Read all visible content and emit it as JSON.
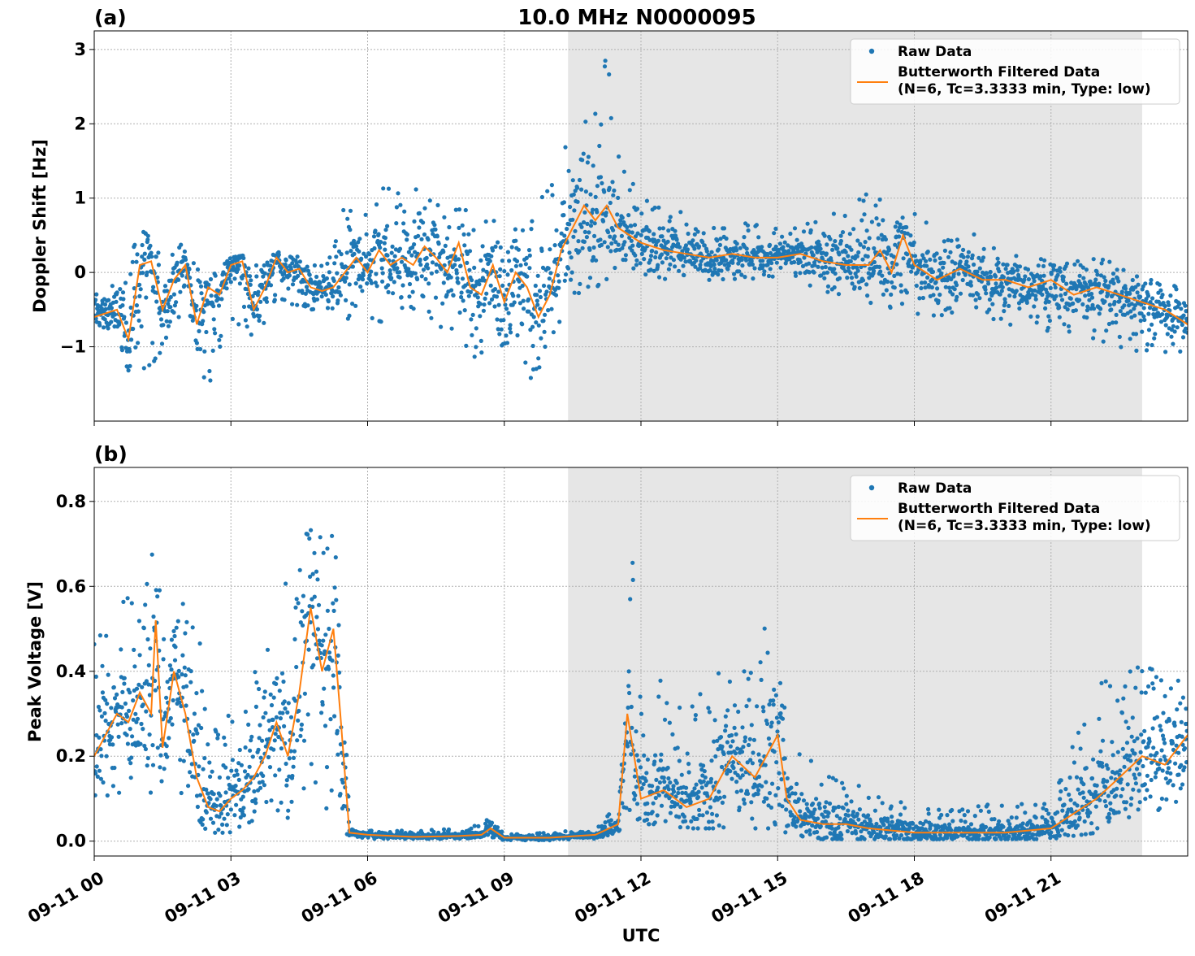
{
  "figure": {
    "title": "10.0 MHz N0000095",
    "xlabel": "UTC",
    "shaded_region_hours": [
      10.4,
      23.0
    ]
  },
  "colors": {
    "raw": "#1f77b4",
    "filtered": "#ff7f0e",
    "shade": "#e6e6e6",
    "grid": "#b0b0b0"
  },
  "legend": {
    "raw_label": "Raw Data",
    "filtered_label_line1": "Butterworth Filtered Data",
    "filtered_label_line2": "(N=6, Tc=3.3333 min, Type: low)"
  },
  "x_ticks": [
    {
      "hour": 0,
      "label": "09-11 00"
    },
    {
      "hour": 3,
      "label": "09-11 03"
    },
    {
      "hour": 6,
      "label": "09-11 06"
    },
    {
      "hour": 9,
      "label": "09-11 09"
    },
    {
      "hour": 12,
      "label": "09-11 12"
    },
    {
      "hour": 15,
      "label": "09-11 15"
    },
    {
      "hour": 18,
      "label": "09-11 18"
    },
    {
      "hour": 21,
      "label": "09-11 21"
    }
  ],
  "chart_data": [
    {
      "type": "scatter",
      "panel_label": "(a)",
      "ylabel": "Doppler Shift [Hz]",
      "xlim": [
        0,
        24
      ],
      "ylim": [
        -2.0,
        3.25
      ],
      "yticks": [
        {
          "value": -1,
          "label": "−1"
        },
        {
          "value": 0,
          "label": "0"
        },
        {
          "value": 1,
          "label": "1"
        },
        {
          "value": 2,
          "label": "2"
        },
        {
          "value": 3,
          "label": "3"
        }
      ],
      "grid": true,
      "legend_position": "top-right",
      "series": [
        {
          "name": "Butterworth Filtered Data",
          "kind": "line",
          "x": [
            0,
            0.25,
            0.5,
            0.75,
            1.0,
            1.25,
            1.5,
            1.75,
            2.0,
            2.25,
            2.5,
            2.75,
            3.0,
            3.25,
            3.5,
            3.75,
            4.0,
            4.25,
            4.5,
            4.75,
            5.0,
            5.25,
            5.5,
            5.75,
            6.0,
            6.25,
            6.5,
            6.75,
            7.0,
            7.25,
            7.5,
            7.75,
            8.0,
            8.25,
            8.5,
            8.75,
            9.0,
            9.25,
            9.5,
            9.75,
            10.0,
            10.25,
            10.5,
            10.75,
            11.0,
            11.25,
            11.5,
            11.75,
            12.0,
            12.5,
            13.0,
            13.5,
            14.0,
            14.5,
            15.0,
            15.5,
            16.0,
            16.5,
            17.0,
            17.25,
            17.5,
            17.75,
            18.0,
            18.5,
            19.0,
            19.5,
            20.0,
            20.5,
            21.0,
            21.5,
            22.0,
            22.5,
            23.0,
            23.5,
            24.0
          ],
          "y": [
            -0.6,
            -0.55,
            -0.5,
            -0.9,
            0.1,
            0.15,
            -0.5,
            -0.1,
            0.1,
            -0.7,
            -0.2,
            -0.3,
            0.1,
            0.15,
            -0.5,
            -0.2,
            0.2,
            0.0,
            0.05,
            -0.2,
            -0.25,
            -0.2,
            0.0,
            0.2,
            0.0,
            0.3,
            0.1,
            0.2,
            0.1,
            0.35,
            0.2,
            0.0,
            0.4,
            -0.2,
            -0.3,
            0.1,
            -0.4,
            0.0,
            -0.2,
            -0.6,
            -0.3,
            0.3,
            0.6,
            0.9,
            0.7,
            0.9,
            0.6,
            0.5,
            0.4,
            0.3,
            0.25,
            0.2,
            0.25,
            0.2,
            0.2,
            0.25,
            0.15,
            0.1,
            0.1,
            0.3,
            0.0,
            0.5,
            0.1,
            -0.1,
            0.05,
            -0.1,
            -0.1,
            -0.2,
            -0.1,
            -0.3,
            -0.2,
            -0.3,
            -0.4,
            -0.5,
            -0.7
          ]
        },
        {
          "name": "Raw Data",
          "kind": "points",
          "envelope_x": [
            0,
            0.5,
            1.0,
            1.5,
            2.0,
            2.5,
            3.0,
            3.5,
            4.0,
            4.5,
            5.0,
            5.5,
            6.0,
            6.5,
            7.0,
            7.5,
            8.0,
            8.5,
            9.0,
            9.5,
            10.0,
            10.5,
            11.0,
            11.25,
            11.5,
            12.0,
            13.0,
            14.0,
            15.0,
            16.0,
            17.0,
            18.0,
            19.0,
            20.0,
            21.0,
            22.0,
            23.0,
            24.0
          ],
          "envelope_low": [
            -1.0,
            -1.0,
            -1.7,
            -1.2,
            -0.6,
            -1.6,
            -0.6,
            -1.0,
            -0.4,
            -0.5,
            -0.5,
            -0.6,
            -0.8,
            -0.7,
            -0.7,
            -0.8,
            -0.9,
            -1.3,
            -1.4,
            -1.6,
            -1.0,
            -0.3,
            -0.3,
            -0.4,
            -0.1,
            -0.1,
            -0.1,
            -0.1,
            -0.1,
            -0.3,
            -0.4,
            -0.6,
            -0.6,
            -0.7,
            -0.8,
            -0.9,
            -1.1,
            -1.1
          ],
          "envelope_high": [
            -0.2,
            -0.1,
            0.6,
            0.3,
            0.45,
            -0.1,
            0.2,
            0.25,
            0.35,
            0.2,
            0.1,
            0.9,
            1.0,
            1.2,
            1.1,
            1.3,
            1.0,
            0.8,
            0.9,
            0.7,
            1.3,
            2.3,
            2.5,
            3.0,
            1.6,
            1.0,
            0.8,
            0.7,
            0.6,
            0.7,
            1.1,
            0.8,
            0.6,
            0.4,
            0.3,
            0.2,
            0.0,
            -0.1
          ]
        }
      ]
    },
    {
      "type": "scatter",
      "panel_label": "(b)",
      "ylabel": "Peak Voltage [V]",
      "xlim": [
        0,
        24
      ],
      "ylim": [
        -0.035,
        0.88
      ],
      "yticks": [
        {
          "value": 0.0,
          "label": "0.0"
        },
        {
          "value": 0.2,
          "label": "0.2"
        },
        {
          "value": 0.4,
          "label": "0.4"
        },
        {
          "value": 0.6,
          "label": "0.6"
        },
        {
          "value": 0.8,
          "label": "0.8"
        }
      ],
      "grid": true,
      "legend_position": "top-right",
      "series": [
        {
          "name": "Butterworth Filtered Data",
          "kind": "line",
          "x": [
            0,
            0.25,
            0.5,
            0.75,
            1.0,
            1.25,
            1.35,
            1.5,
            1.75,
            2.0,
            2.25,
            2.5,
            2.75,
            3.0,
            3.25,
            3.5,
            3.75,
            4.0,
            4.25,
            4.5,
            4.75,
            5.0,
            5.25,
            5.4,
            5.6,
            6.0,
            7.0,
            8.0,
            8.5,
            8.7,
            9.0,
            10.0,
            11.0,
            11.5,
            11.7,
            11.85,
            12.0,
            12.5,
            13.0,
            13.5,
            14.0,
            14.5,
            15.0,
            15.2,
            15.5,
            16.0,
            16.5,
            17.0,
            18.0,
            19.0,
            20.0,
            21.0,
            22.0,
            22.5,
            23.0,
            23.5,
            24.0
          ],
          "y": [
            0.2,
            0.25,
            0.3,
            0.28,
            0.35,
            0.3,
            0.52,
            0.22,
            0.4,
            0.3,
            0.15,
            0.08,
            0.07,
            0.1,
            0.12,
            0.15,
            0.2,
            0.28,
            0.2,
            0.35,
            0.55,
            0.4,
            0.5,
            0.3,
            0.02,
            0.015,
            0.01,
            0.012,
            0.015,
            0.03,
            0.008,
            0.008,
            0.015,
            0.04,
            0.3,
            0.2,
            0.1,
            0.12,
            0.08,
            0.1,
            0.2,
            0.15,
            0.25,
            0.1,
            0.05,
            0.04,
            0.04,
            0.03,
            0.02,
            0.02,
            0.02,
            0.03,
            0.1,
            0.15,
            0.2,
            0.18,
            0.25
          ]
        },
        {
          "name": "Raw Data",
          "kind": "points",
          "envelope_x": [
            0,
            0.5,
            1.0,
            1.35,
            1.6,
            2.0,
            2.3,
            2.5,
            3.0,
            3.5,
            4.0,
            4.5,
            5.0,
            5.3,
            5.45,
            5.6,
            6.0,
            7.0,
            8.0,
            8.5,
            8.7,
            9.0,
            10.0,
            11.0,
            11.5,
            11.7,
            11.85,
            12.0,
            12.5,
            13.0,
            13.5,
            14.0,
            14.5,
            15.0,
            15.2,
            15.5,
            16.0,
            16.5,
            17.0,
            18.0,
            19.0,
            20.0,
            21.0,
            22.0,
            22.5,
            23.0,
            23.5,
            24.0
          ],
          "envelope_low": [
            0.08,
            0.1,
            0.12,
            0.1,
            0.1,
            0.1,
            0.05,
            0.02,
            0.02,
            0.05,
            0.06,
            0.05,
            0.05,
            0.05,
            0.02,
            0.01,
            0.005,
            0.005,
            0.005,
            0.01,
            0.01,
            0.002,
            0.002,
            0.005,
            0.02,
            0.05,
            0.04,
            0.04,
            0.04,
            0.03,
            0.03,
            0.03,
            0.03,
            0.03,
            0.01,
            0.005,
            0.005,
            0.005,
            0.005,
            0.005,
            0.005,
            0.005,
            0.005,
            0.02,
            0.05,
            0.06,
            0.07,
            0.08
          ],
          "envelope_high": [
            0.5,
            0.6,
            0.55,
            0.75,
            0.5,
            0.7,
            0.55,
            0.3,
            0.3,
            0.4,
            0.55,
            0.7,
            0.8,
            0.84,
            0.6,
            0.03,
            0.03,
            0.025,
            0.03,
            0.04,
            0.07,
            0.02,
            0.02,
            0.03,
            0.1,
            0.45,
            0.75,
            0.3,
            0.4,
            0.3,
            0.38,
            0.42,
            0.4,
            0.67,
            0.3,
            0.2,
            0.2,
            0.15,
            0.12,
            0.1,
            0.08,
            0.09,
            0.1,
            0.4,
            0.35,
            0.49,
            0.45,
            0.4
          ]
        }
      ]
    }
  ]
}
